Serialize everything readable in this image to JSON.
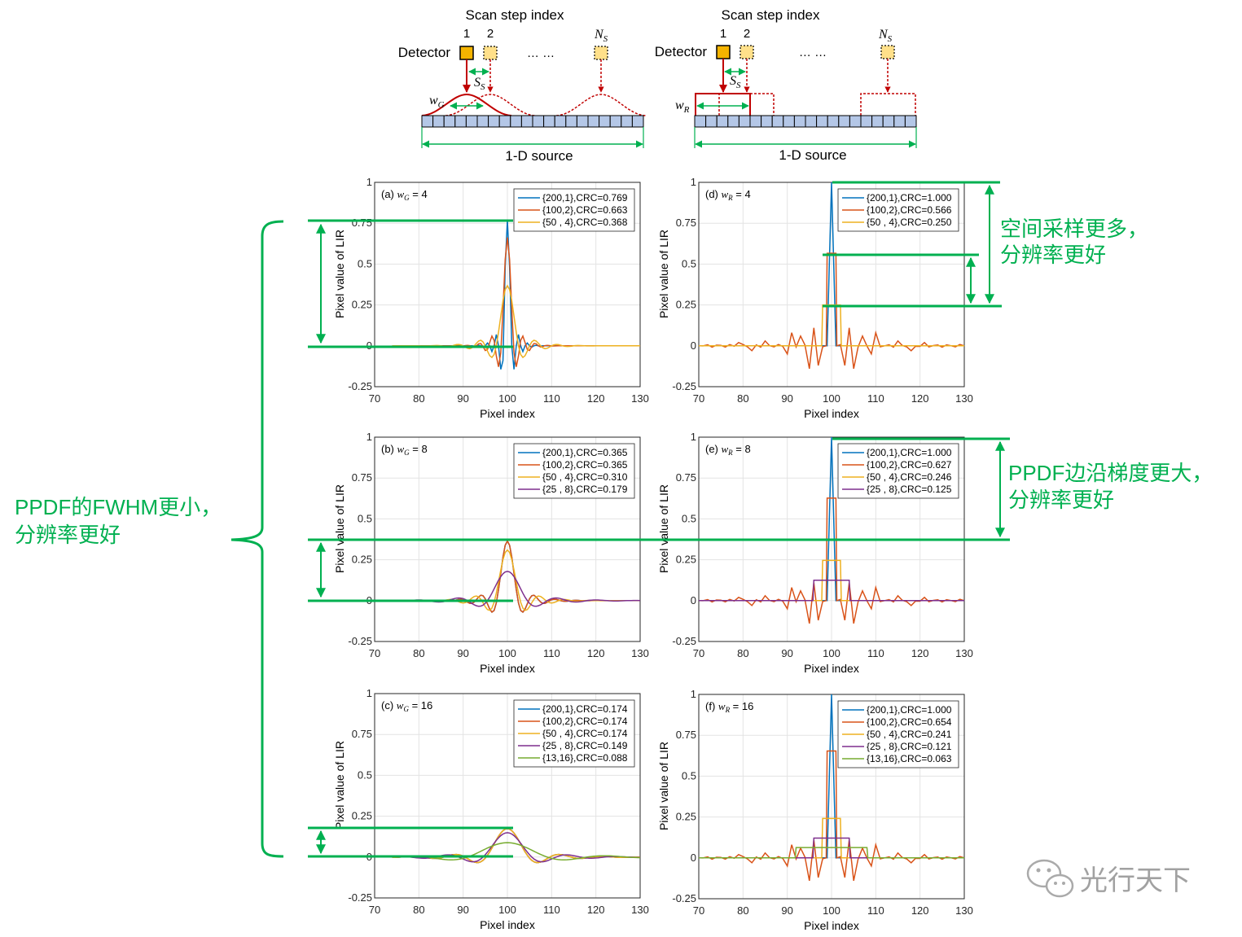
{
  "schematic": {
    "scan_step_label": "Scan step index",
    "detector_label": "Detector",
    "step_1": "1",
    "step_2": "2",
    "dots": "… …",
    "ns_label": "N",
    "ns_sub": "S",
    "ss_label": "S",
    "ss_sub": "S",
    "wg_label": "w",
    "wg_sub": "G",
    "wr_label": "w",
    "wr_sub": "R",
    "source_label": "1-D source",
    "detector_color": "#f5b400",
    "kernel_color": "#c00000",
    "source_color": "#b4c7e7",
    "arrow_color": "#00b050"
  },
  "annotations": {
    "left_text": [
      "PPDF的FWHM更小，",
      "分辨率更好"
    ],
    "right_top_text": [
      "空间采样更多，",
      "分辨率更好"
    ],
    "right_mid_text": [
      "PPDF边沿梯度更大，",
      "分辨率更好"
    ],
    "watermark": "光行天下",
    "color": "#00b050"
  },
  "chart_data": [
    {
      "id": "a",
      "type": "line",
      "panel_label": "(a)",
      "w_symbol": "w",
      "w_sub": "G",
      "w_value": "= 4",
      "xlabel": "Pixel index",
      "ylabel": "Pixel value of LIR",
      "xlim": [
        70,
        130
      ],
      "ylim": [
        -0.25,
        1
      ],
      "xticks": [
        "70",
        "80",
        "90",
        "100",
        "110",
        "120",
        "130"
      ],
      "yticks": [
        "-0.25",
        "0",
        "0.25",
        "0.5",
        "0.75",
        "1"
      ],
      "grid": true,
      "legend_position": "top-right",
      "series": [
        {
          "name": "{200,1},CRC=0.769",
          "color": "#0072bd",
          "peak": 0.769,
          "width": 1.0
        },
        {
          "name": "{100,2},CRC=0.663",
          "color": "#d95319",
          "peak": 0.663,
          "width": 1.4
        },
        {
          "name": "{50 , 4},CRC=0.368",
          "color": "#edb120",
          "peak": 0.368,
          "width": 2.5
        }
      ]
    },
    {
      "id": "b",
      "type": "line",
      "panel_label": "(b)",
      "w_symbol": "w",
      "w_sub": "G",
      "w_value": "= 8",
      "xlabel": "Pixel index",
      "ylabel": "Pixel value of LIR",
      "xlim": [
        70,
        130
      ],
      "ylim": [
        -0.25,
        1
      ],
      "xticks": [
        "70",
        "80",
        "90",
        "100",
        "110",
        "120",
        "130"
      ],
      "yticks": [
        "-0.25",
        "0",
        "0.25",
        "0.5",
        "0.75",
        "1"
      ],
      "grid": true,
      "legend_position": "top-right",
      "series": [
        {
          "name": "{200,1},CRC=0.365",
          "color": "#0072bd",
          "peak": 0.365,
          "width": 2.4
        },
        {
          "name": "{100,2},CRC=0.365",
          "color": "#d95319",
          "peak": 0.365,
          "width": 2.4
        },
        {
          "name": "{50 , 4},CRC=0.310",
          "color": "#edb120",
          "peak": 0.31,
          "width": 2.9
        },
        {
          "name": "{25 , 8},CRC=0.179",
          "color": "#7e2f8e",
          "peak": 0.179,
          "width": 4.5
        }
      ]
    },
    {
      "id": "c",
      "type": "line",
      "panel_label": "(c)",
      "w_symbol": "w",
      "w_sub": "G",
      "w_value": "= 16",
      "xlabel": "Pixel index",
      "ylabel": "Pixel value of LIR",
      "xlim": [
        70,
        130
      ],
      "ylim": [
        -0.25,
        1
      ],
      "xticks": [
        "70",
        "80",
        "90",
        "100",
        "110",
        "120",
        "130"
      ],
      "yticks": [
        "-0.25",
        "0",
        "0.25",
        "0.5",
        "0.75",
        "1"
      ],
      "grid": true,
      "legend_position": "top-right",
      "series": [
        {
          "name": "{200,1},CRC=0.174",
          "color": "#0072bd",
          "peak": 0.174,
          "width": 4.8
        },
        {
          "name": "{100,2},CRC=0.174",
          "color": "#d95319",
          "peak": 0.174,
          "width": 4.8
        },
        {
          "name": "{50 , 4},CRC=0.174",
          "color": "#edb120",
          "peak": 0.174,
          "width": 4.8
        },
        {
          "name": "{25 , 8},CRC=0.149",
          "color": "#7e2f8e",
          "peak": 0.149,
          "width": 5.5
        },
        {
          "name": "{13,16},CRC=0.088",
          "color": "#77ac30",
          "peak": 0.088,
          "width": 9.0
        }
      ]
    },
    {
      "id": "d",
      "type": "line",
      "panel_label": "(d)",
      "w_symbol": "w",
      "w_sub": "R",
      "w_value": "= 4",
      "xlabel": "Pixel index",
      "ylabel": "Pixel value of LIR",
      "xlim": [
        70,
        130
      ],
      "ylim": [
        -0.25,
        1
      ],
      "xticks": [
        "70",
        "80",
        "90",
        "100",
        "110",
        "120",
        "130"
      ],
      "yticks": [
        "-0.25",
        "0",
        "0.25",
        "0.5",
        "0.75",
        "1"
      ],
      "grid": true,
      "legend_position": "top-right",
      "series": [
        {
          "name": "{200,1},CRC=1.000",
          "color": "#0072bd",
          "peak": 1.0,
          "halfwidth": 0.5
        },
        {
          "name": "{100,2},CRC=0.566",
          "color": "#d95319",
          "peak": 0.566,
          "halfwidth": 1.0
        },
        {
          "name": "{50 , 4},CRC=0.250",
          "color": "#edb120",
          "peak": 0.25,
          "halfwidth": 2.0
        }
      ]
    },
    {
      "id": "e",
      "type": "line",
      "panel_label": "(e)",
      "w_symbol": "w",
      "w_sub": "R",
      "w_value": "= 8",
      "xlabel": "Pixel index",
      "ylabel": "Pixel value of LIR",
      "xlim": [
        70,
        130
      ],
      "ylim": [
        -0.25,
        1
      ],
      "xticks": [
        "70",
        "80",
        "90",
        "100",
        "110",
        "120",
        "130"
      ],
      "yticks": [
        "-0.25",
        "0",
        "0.25",
        "0.5",
        "0.75",
        "1"
      ],
      "grid": true,
      "legend_position": "top-right",
      "series": [
        {
          "name": "{200,1},CRC=1.000",
          "color": "#0072bd",
          "peak": 1.0,
          "halfwidth": 0.5
        },
        {
          "name": "{100,2},CRC=0.627",
          "color": "#d95319",
          "peak": 0.627,
          "halfwidth": 1.0
        },
        {
          "name": "{50 , 4},CRC=0.246",
          "color": "#edb120",
          "peak": 0.246,
          "halfwidth": 2.0
        },
        {
          "name": "{25 , 8},CRC=0.125",
          "color": "#7e2f8e",
          "peak": 0.125,
          "halfwidth": 4.0
        }
      ]
    },
    {
      "id": "f",
      "type": "line",
      "panel_label": "(f)",
      "w_symbol": "w",
      "w_sub": "R",
      "w_value": "= 16",
      "xlabel": "Pixel index",
      "ylabel": "Pixel value of LIR",
      "xlim": [
        70,
        130
      ],
      "ylim": [
        -0.25,
        1
      ],
      "xticks": [
        "70",
        "80",
        "90",
        "100",
        "110",
        "120",
        "130"
      ],
      "yticks": [
        "-0.25",
        "0",
        "0.25",
        "0.5",
        "0.75",
        "1"
      ],
      "grid": true,
      "legend_position": "top-right",
      "series": [
        {
          "name": "{200,1},CRC=1.000",
          "color": "#0072bd",
          "peak": 1.0,
          "halfwidth": 0.5
        },
        {
          "name": "{100,2},CRC=0.654",
          "color": "#d95319",
          "peak": 0.654,
          "halfwidth": 1.0
        },
        {
          "name": "{50 , 4},CRC=0.241",
          "color": "#edb120",
          "peak": 0.241,
          "halfwidth": 2.0
        },
        {
          "name": "{25 , 8},CRC=0.121",
          "color": "#7e2f8e",
          "peak": 0.121,
          "halfwidth": 4.0
        },
        {
          "name": "{13,16},CRC=0.063",
          "color": "#77ac30",
          "peak": 0.063,
          "halfwidth": 8.0
        }
      ]
    }
  ]
}
